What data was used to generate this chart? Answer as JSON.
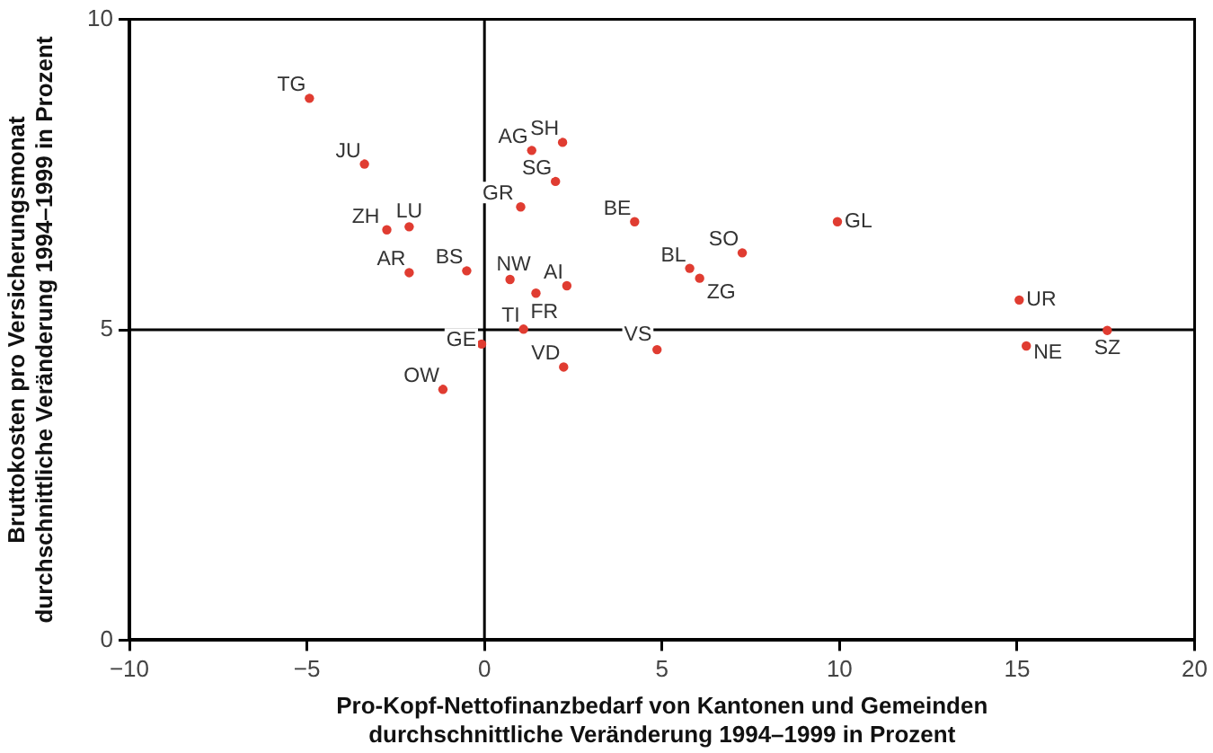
{
  "chart_data": {
    "type": "scatter",
    "xlabel": "Pro-Kopf-Nettofinanzbedarf von Kantonen und Gemeinden\ndurchschnittliche Veränderung 1994–1999 in Prozent",
    "ylabel": "Bruttokosten pro Versicherungsmonat\ndurchschnittliche Veränderung 1994–1999 in Prozent",
    "series": [
      {
        "color": "#e03c31",
        "x": [
          -4.93,
          -3.38,
          -2.75,
          -2.12,
          -2.12,
          -0.5,
          -0.08,
          -1.17,
          1.33,
          2.2,
          2.0,
          1.02,
          4.23,
          0.72,
          2.32,
          1.45,
          1.1,
          2.23,
          4.86,
          5.78,
          6.06,
          7.26,
          9.94,
          15.06,
          15.26,
          17.54
        ],
        "values": [
          8.73,
          7.67,
          6.61,
          6.66,
          5.92,
          5.95,
          4.77,
          4.04,
          7.89,
          8.02,
          7.39,
          6.98,
          6.74,
          5.81,
          5.71,
          5.59,
          5.01,
          4.4,
          4.68,
          5.99,
          5.83,
          6.24,
          6.74,
          5.48,
          4.74,
          4.99
        ]
      }
    ],
    "annotations": [
      {
        "text": "TG",
        "x": -4.93,
        "y": 8.73
      },
      {
        "text": "JU",
        "x": -3.38,
        "y": 7.67
      },
      {
        "text": "ZH",
        "x": -2.75,
        "y": 6.61
      },
      {
        "text": "LU",
        "x": -2.12,
        "y": 6.66
      },
      {
        "text": "AR",
        "x": -2.12,
        "y": 5.92
      },
      {
        "text": "BS",
        "x": -0.5,
        "y": 5.95
      },
      {
        "text": "GE",
        "x": -0.08,
        "y": 4.77
      },
      {
        "text": "OW",
        "x": -1.17,
        "y": 4.04
      },
      {
        "text": "AG",
        "x": 1.33,
        "y": 7.89
      },
      {
        "text": "SH",
        "x": 2.2,
        "y": 8.02
      },
      {
        "text": "SG",
        "x": 2.0,
        "y": 7.39
      },
      {
        "text": "GR",
        "x": 1.02,
        "y": 6.98
      },
      {
        "text": "BE",
        "x": 4.23,
        "y": 6.74
      },
      {
        "text": "NW",
        "x": 0.72,
        "y": 5.81
      },
      {
        "text": "AI",
        "x": 2.32,
        "y": 5.71
      },
      {
        "text": "FR",
        "x": 1.45,
        "y": 5.59
      },
      {
        "text": "TI",
        "x": 1.1,
        "y": 5.01
      },
      {
        "text": "VD",
        "x": 2.23,
        "y": 4.4
      },
      {
        "text": "VS",
        "x": 4.86,
        "y": 4.68
      },
      {
        "text": "BL",
        "x": 5.78,
        "y": 5.99
      },
      {
        "text": "ZG",
        "x": 6.06,
        "y": 5.83
      },
      {
        "text": "SO",
        "x": 7.26,
        "y": 6.24
      },
      {
        "text": "GL",
        "x": 9.94,
        "y": 6.74
      },
      {
        "text": "UR",
        "x": 15.06,
        "y": 5.48
      },
      {
        "text": "NE",
        "x": 15.26,
        "y": 4.74
      },
      {
        "text": "SZ",
        "x": 17.54,
        "y": 4.99
      }
    ],
    "xlim": [
      -10,
      20
    ],
    "xticks": [
      {
        "value": -10,
        "label": "−10"
      },
      {
        "value": -5,
        "label": "−5"
      },
      0,
      5,
      10,
      15,
      20
    ],
    "ylim": [
      0,
      10
    ],
    "yticks": [
      0,
      5,
      10
    ],
    "ref_lines": [
      {
        "axis": "x",
        "value": 0,
        "color": "#000000"
      },
      {
        "axis": "y",
        "value": 5,
        "color": "#000000"
      }
    ],
    "marker": "circle",
    "grid": false,
    "legend": false
  }
}
